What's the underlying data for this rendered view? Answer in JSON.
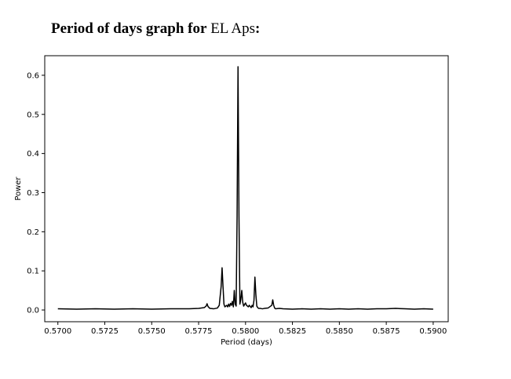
{
  "heading": {
    "prefix": "Period of days graph for",
    "star_name": "EL Aps",
    "suffix": ":"
  },
  "chart_data": {
    "type": "line",
    "title": "",
    "xlabel": "Period (days)",
    "ylabel": "Power",
    "xlim": [
      0.5693,
      0.5908
    ],
    "ylim": [
      -0.03,
      0.65
    ],
    "xticks": [
      0.57,
      0.5725,
      0.575,
      0.5775,
      0.58,
      0.5825,
      0.585,
      0.5875,
      0.59
    ],
    "xtick_labels": [
      "0.5700",
      "0.5725",
      "0.5750",
      "0.5775",
      "0.5800",
      "0.5825",
      "0.5850",
      "0.5875",
      "0.5900"
    ],
    "yticks": [
      0.0,
      0.1,
      0.2,
      0.3,
      0.4,
      0.5,
      0.6
    ],
    "ytick_labels": [
      "0.0",
      "0.1",
      "0.2",
      "0.3",
      "0.4",
      "0.5",
      "0.6"
    ],
    "grid": false,
    "line_color": "#000000",
    "series": [
      {
        "x": [
          0.57,
          0.571,
          0.572,
          0.573,
          0.574,
          0.575,
          0.576,
          0.577,
          0.5775,
          0.5778,
          0.5779,
          0.57795,
          0.578,
          0.5781,
          0.5783,
          0.5785,
          0.5786,
          0.5787,
          0.57875,
          0.5788,
          0.57885,
          0.5789,
          0.579,
          0.57905,
          0.5791,
          0.57915,
          0.5792,
          0.57925,
          0.5793,
          0.57935,
          0.5794,
          0.57945,
          0.5795,
          0.57955,
          0.5796,
          0.57965,
          0.5797,
          0.57975,
          0.5798,
          0.57985,
          0.5799,
          0.57995,
          0.58,
          0.58005,
          0.5801,
          0.58015,
          0.5802,
          0.58025,
          0.5803,
          0.58035,
          0.5804,
          0.58045,
          0.5805,
          0.58055,
          0.5806,
          0.58065,
          0.5807,
          0.5808,
          0.5809,
          0.581,
          0.5812,
          0.5814,
          0.58145,
          0.5815,
          0.58155,
          0.5816,
          0.5818,
          0.582,
          0.5825,
          0.583,
          0.5835,
          0.584,
          0.5845,
          0.585,
          0.5855,
          0.586,
          0.5865,
          0.587,
          0.5875,
          0.588,
          0.5885,
          0.589,
          0.5895,
          0.59
        ],
        "y": [
          0.003,
          0.002,
          0.003,
          0.002,
          0.003,
          0.002,
          0.003,
          0.003,
          0.004,
          0.006,
          0.01,
          0.016,
          0.009,
          0.004,
          0.003,
          0.005,
          0.012,
          0.06,
          0.108,
          0.06,
          0.015,
          0.008,
          0.012,
          0.008,
          0.015,
          0.009,
          0.017,
          0.012,
          0.022,
          0.008,
          0.05,
          0.015,
          0.01,
          0.24,
          0.622,
          0.24,
          0.015,
          0.028,
          0.05,
          0.02,
          0.01,
          0.014,
          0.018,
          0.012,
          0.01,
          0.008,
          0.012,
          0.009,
          0.006,
          0.012,
          0.008,
          0.025,
          0.084,
          0.04,
          0.01,
          0.006,
          0.004,
          0.004,
          0.003,
          0.004,
          0.005,
          0.012,
          0.026,
          0.012,
          0.005,
          0.003,
          0.004,
          0.003,
          0.002,
          0.003,
          0.002,
          0.003,
          0.002,
          0.003,
          0.002,
          0.003,
          0.002,
          0.003,
          0.003,
          0.004,
          0.003,
          0.002,
          0.003,
          0.002
        ]
      }
    ]
  }
}
